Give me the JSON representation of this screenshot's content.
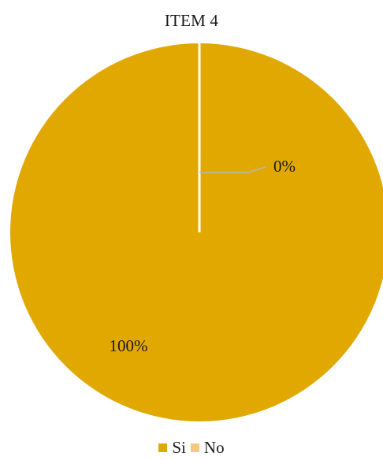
{
  "chart_data": {
    "type": "pie",
    "title": "ITEM 4",
    "categories": [
      "Si",
      "No"
    ],
    "values": [
      100,
      0
    ],
    "data_labels": [
      "100%",
      "0%"
    ],
    "colors": [
      "#e0a800",
      "#f5c882"
    ],
    "legend_position": "bottom"
  }
}
